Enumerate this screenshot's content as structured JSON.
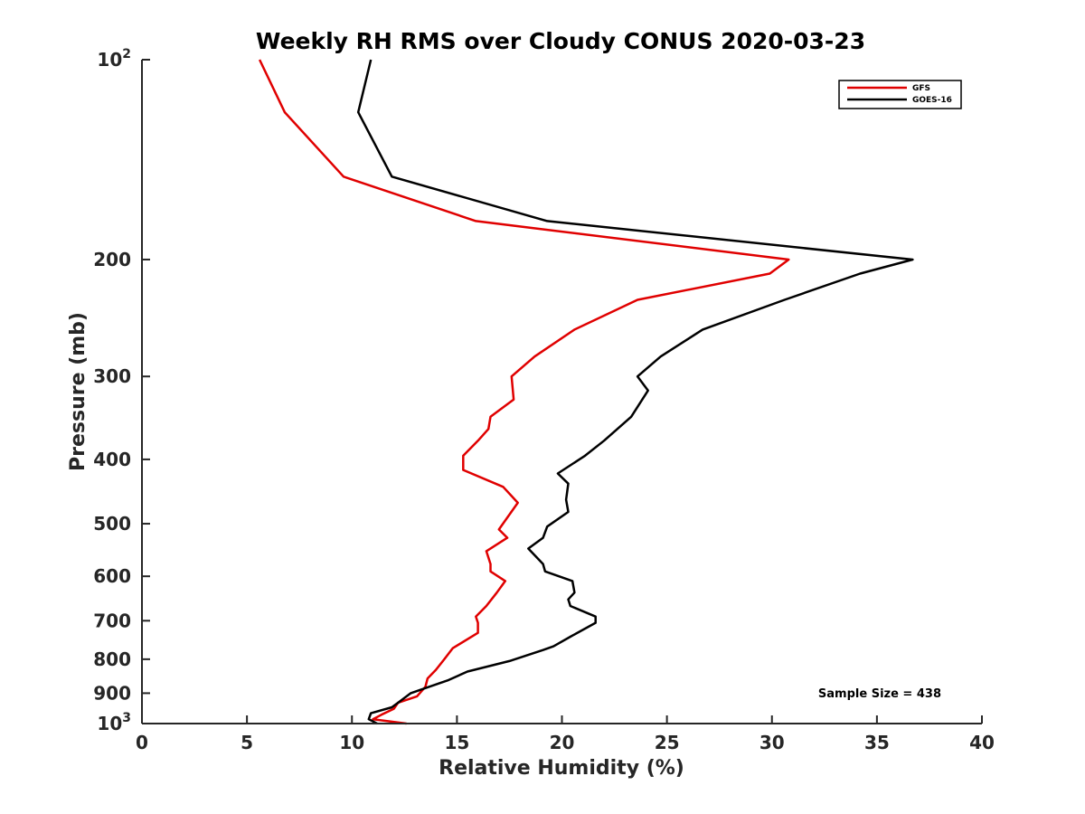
{
  "chart_data": {
    "type": "line",
    "title": "Weekly RH RMS over Cloudy CONUS 2020-03-23",
    "xlabel": "Relative Humidity (%)",
    "ylabel": "Pressure (mb)",
    "xlim": [
      0,
      40
    ],
    "ylim": [
      100,
      1000
    ],
    "yscale": "log",
    "y_reversed": true,
    "grid": false,
    "legend_position": "top-right",
    "x_ticks": [
      "0",
      "5",
      "10",
      "15",
      "20",
      "25",
      "30",
      "35",
      "40"
    ],
    "y_ticks": [
      {
        "value": 100,
        "base": "10",
        "exp": "2"
      },
      {
        "value": 200,
        "label": "200"
      },
      {
        "value": 300,
        "label": "300"
      },
      {
        "value": 400,
        "label": "400"
      },
      {
        "value": 500,
        "label": "500"
      },
      {
        "value": 600,
        "label": "600"
      },
      {
        "value": 700,
        "label": "700"
      },
      {
        "value": 800,
        "label": "800"
      },
      {
        "value": 900,
        "label": "900"
      },
      {
        "value": 1000,
        "base": "10",
        "exp": "3"
      }
    ],
    "annotation": "Sample Size = 438",
    "series": [
      {
        "name": "GFS",
        "color": "#e00000",
        "points": [
          [
            5.6,
            100
          ],
          [
            6.8,
            120
          ],
          [
            9.6,
            150
          ],
          [
            15.9,
            175
          ],
          [
            30.8,
            200
          ],
          [
            29.9,
            210
          ],
          [
            23.6,
            230
          ],
          [
            20.6,
            255
          ],
          [
            18.7,
            280
          ],
          [
            17.6,
            300
          ],
          [
            17.7,
            325
          ],
          [
            16.6,
            345
          ],
          [
            16.5,
            360
          ],
          [
            16.0,
            375
          ],
          [
            15.3,
            395
          ],
          [
            15.3,
            415
          ],
          [
            17.2,
            440
          ],
          [
            17.9,
            465
          ],
          [
            17.0,
            510
          ],
          [
            17.4,
            525
          ],
          [
            16.4,
            550
          ],
          [
            16.6,
            575
          ],
          [
            16.6,
            590
          ],
          [
            17.3,
            610
          ],
          [
            16.9,
            635
          ],
          [
            16.4,
            665
          ],
          [
            15.9,
            690
          ],
          [
            16.0,
            705
          ],
          [
            16.0,
            730
          ],
          [
            14.8,
            770
          ],
          [
            14.4,
            800
          ],
          [
            14.0,
            830
          ],
          [
            13.6,
            855
          ],
          [
            13.5,
            880
          ],
          [
            13.1,
            910
          ],
          [
            12.2,
            930
          ],
          [
            12.0,
            950
          ],
          [
            11.4,
            970
          ],
          [
            11.0,
            985
          ],
          [
            12.6,
            1000
          ]
        ]
      },
      {
        "name": "GOES-16",
        "color": "#000000",
        "points": [
          [
            10.9,
            100
          ],
          [
            10.3,
            120
          ],
          [
            11.9,
            150
          ],
          [
            19.3,
            175
          ],
          [
            36.7,
            200
          ],
          [
            34.2,
            210
          ],
          [
            30.6,
            230
          ],
          [
            26.7,
            255
          ],
          [
            24.7,
            280
          ],
          [
            23.6,
            300
          ],
          [
            24.1,
            315
          ],
          [
            23.3,
            345
          ],
          [
            22.0,
            375
          ],
          [
            21.1,
            395
          ],
          [
            19.8,
            420
          ],
          [
            20.3,
            435
          ],
          [
            20.2,
            460
          ],
          [
            20.3,
            480
          ],
          [
            19.3,
            505
          ],
          [
            19.1,
            525
          ],
          [
            18.4,
            545
          ],
          [
            19.1,
            575
          ],
          [
            19.2,
            590
          ],
          [
            20.5,
            610
          ],
          [
            20.6,
            635
          ],
          [
            20.3,
            650
          ],
          [
            20.4,
            665
          ],
          [
            21.6,
            690
          ],
          [
            21.6,
            705
          ],
          [
            20.4,
            740
          ],
          [
            19.6,
            765
          ],
          [
            19.1,
            775
          ],
          [
            17.5,
            805
          ],
          [
            15.5,
            835
          ],
          [
            14.6,
            860
          ],
          [
            12.8,
            900
          ],
          [
            12.3,
            925
          ],
          [
            11.9,
            945
          ],
          [
            10.9,
            965
          ],
          [
            10.8,
            985
          ],
          [
            11.2,
            1000
          ]
        ]
      }
    ]
  }
}
